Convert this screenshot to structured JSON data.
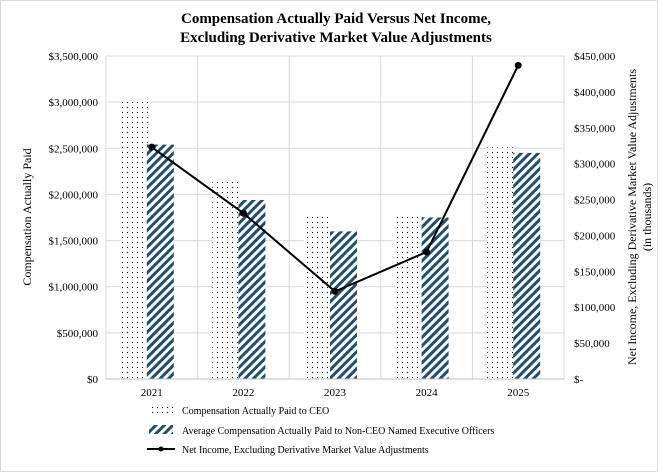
{
  "chart_data": {
    "type": "bar",
    "title": [
      "Compensation Actually Paid Versus Net Income,",
      "Excluding Derivative Market Value Adjustments"
    ],
    "categories": [
      "2021",
      "2022",
      "2023",
      "2024",
      "2025"
    ],
    "ylabel": "Compensation Actually Paid",
    "y2label": [
      "Net Income, Excluding Derivative Market Value Adjustments",
      "(in thousands)"
    ],
    "ylim": [
      0,
      3500000
    ],
    "y2lim": [
      0,
      450000
    ],
    "yticks": [
      "$0",
      "$500,000",
      "$1,000,000",
      "$1,500,000",
      "$2,000,000",
      "$2,500,000",
      "$3,000,000",
      "$3,500,000"
    ],
    "y2ticks": [
      "$-",
      "$50,000",
      "$100,000",
      "$150,000",
      "$200,000",
      "$250,000",
      "$300,000",
      "$350,000",
      "$400,000",
      "$450,000"
    ],
    "grid": true,
    "legend_position": "bottom",
    "series": [
      {
        "name": "Compensation Actually Paid to CEO",
        "type": "bar",
        "pattern": "dots",
        "axis": "left",
        "values": [
          3030000,
          2165000,
          1790000,
          1790000,
          2510000
        ]
      },
      {
        "name": "Average Compensation Actually Paid to Non-CEO Named Executive Officers",
        "type": "bar",
        "pattern": "diagonal-stripes",
        "color": "#1f4e6e",
        "axis": "left",
        "values": [
          2540000,
          1940000,
          1600000,
          1750000,
          2450000
        ]
      },
      {
        "name": "Net Income, Excluding Derivative Market Value Adjustments",
        "type": "line",
        "color": "#000000",
        "axis": "right",
        "values": [
          323000,
          231000,
          122000,
          177000,
          437000
        ]
      }
    ]
  }
}
